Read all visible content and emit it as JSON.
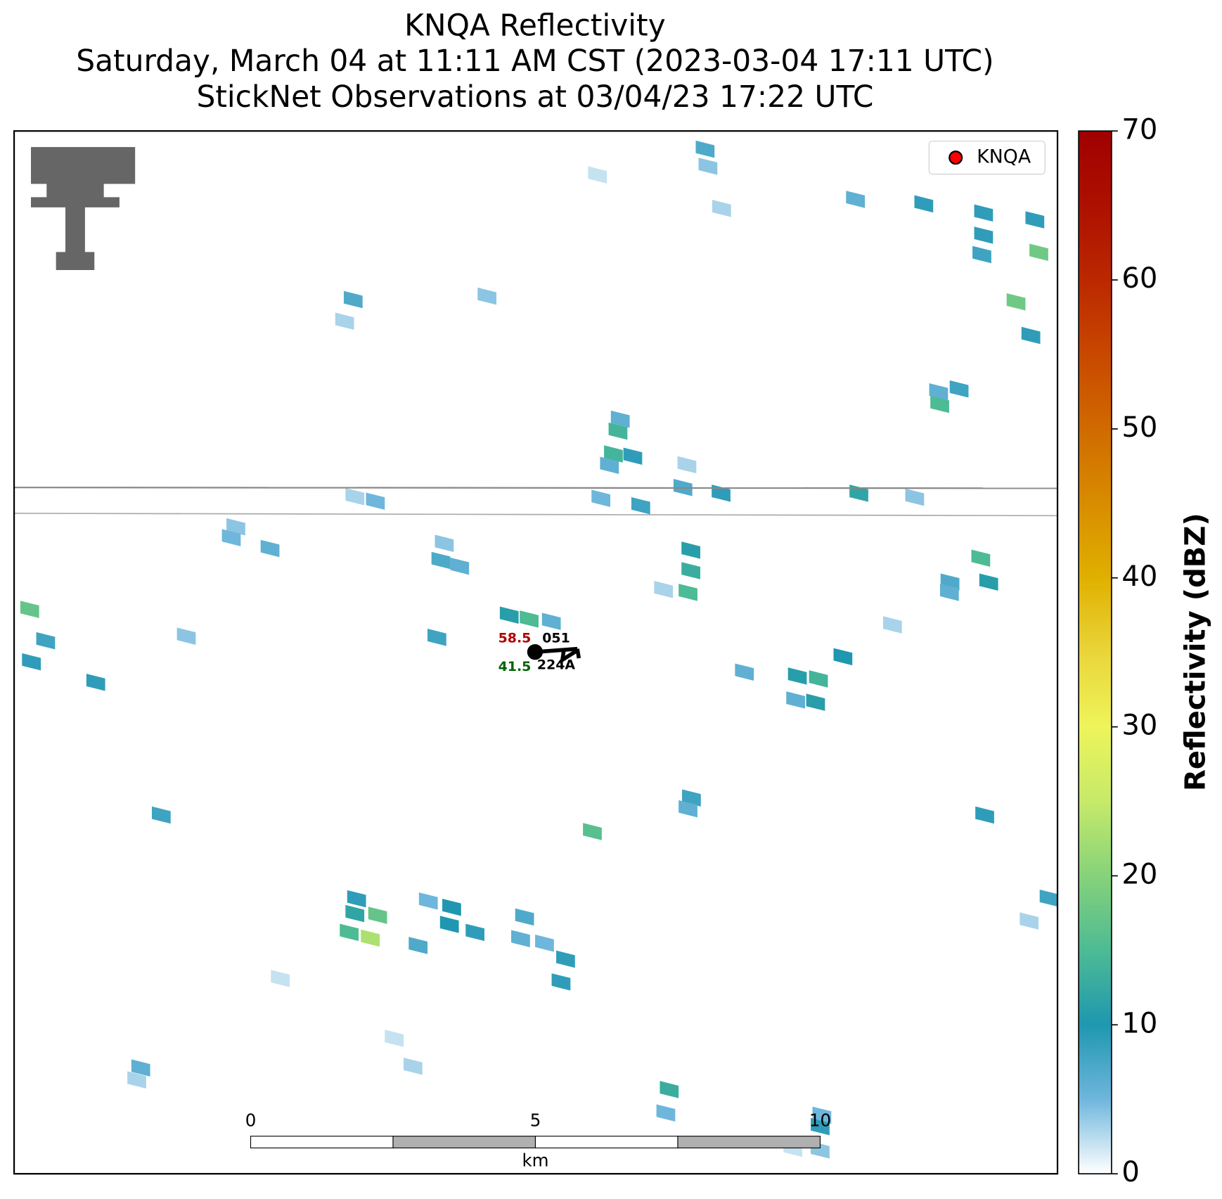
{
  "title": {
    "line1": "KNQA Reflectivity",
    "line2": "Saturday, March 04 at 11:11 AM CST (2023-03-04 17:11 UTC)",
    "line3": "StickNet Observations at 03/04/23 17:22 UTC"
  },
  "legend": {
    "label": "KNQA",
    "color": "#ff0000"
  },
  "station": {
    "temperature": 58.5,
    "dewpoint": 41.5,
    "pressure": "051",
    "id": "224A"
  },
  "colorbar": {
    "label": "Reflectivity (dBZ)",
    "lim": [
      0,
      70
    ],
    "ticks": [
      0,
      10,
      20,
      30,
      40,
      50,
      60,
      70
    ],
    "colormap": [
      "#ffffff",
      "#6fb6dc",
      "#1f97b0",
      "#4dbb94",
      "#86d27a",
      "#c6ea6a",
      "#eef45a",
      "#e9d53a",
      "#e0b000",
      "#d88c00",
      "#d06a00",
      "#c84800",
      "#bb2800",
      "#ad1000",
      "#a00000"
    ]
  },
  "scale_bar": {
    "ticks": [
      0,
      5,
      10
    ],
    "unit": "km"
  },
  "radar_cells": {
    "x": [
      7.98,
      8.03,
      6.09,
      8.27,
      10.62,
      11.82,
      12.87,
      12.87,
      12.84,
      13.77,
      13.84,
      1.8,
      1.65,
      4.15,
      13.44,
      13.7,
      12.08,
      12.44,
      12.1,
      6.49,
      6.45,
      6.37,
      6.71,
      6.3,
      7.66,
      7.59,
      8.26,
      6.85,
      6.15,
      1.83,
      2.19,
      10.68,
      11.66,
      -0.26,
      -0.34,
      0.34,
      3.4,
      3.34,
      3.67,
      7.73,
      7.73,
      7.68,
      7.25,
      12.82,
      12.28,
      12.96,
      12.27,
      4.54,
      4.89,
      5.28,
      3.27,
      -3.88,
      -3.6,
      -3.85,
      -2.72,
      -1.13,
      10.4,
      9.6,
      9.97,
      8.67,
      9.57,
      9.92,
      11.27,
      -1.57,
      7.74,
      7.68,
      6.0,
      12.89,
      1.86,
      1.83,
      2.23,
      1.73,
      2.1,
      3.12,
      3.53,
      3.49,
      3.94,
      4.81,
      4.74,
      5.16,
      2.94,
      5.53,
      5.45,
      0.52,
      -1.93,
      -2.0,
      2.52,
      2.85,
      7.35,
      7.29,
      10.03,
      10.0,
      10.0,
      9.52,
      14.02,
      13.67
    ],
    "y": [
      0.32,
      0.62,
      0.77,
      1.36,
      1.2,
      1.28,
      1.44,
      1.83,
      2.17,
      1.56,
      2.13,
      2.96,
      3.34,
      2.9,
      3.0,
      3.59,
      4.58,
      4.53,
      4.8,
      5.06,
      5.27,
      5.67,
      5.71,
      5.87,
      5.86,
      6.26,
      6.36,
      6.58,
      6.45,
      6.42,
      6.5,
      6.36,
      6.43,
      6.95,
      7.14,
      7.33,
      7.24,
      7.54,
      7.64,
      7.36,
      7.72,
      8.1,
      8.05,
      7.5,
      7.92,
      7.92,
      8.1,
      8.5,
      8.57,
      8.61,
      8.89,
      8.4,
      8.95,
      9.32,
      9.68,
      8.87,
      9.23,
      9.57,
      9.62,
      9.5,
      9.99,
      10.03,
      8.67,
      12.01,
      11.71,
      11.9,
      12.3,
      12.01,
      13.48,
      13.74,
      13.77,
      14.07,
      14.17,
      13.52,
      13.63,
      13.93,
      14.07,
      13.8,
      14.18,
      14.26,
      14.3,
      14.54,
      14.94,
      14.88,
      16.45,
      16.66,
      15.93,
      16.42,
      16.83,
      17.24,
      17.28,
      17.48,
      17.89,
      17.86,
      13.47,
      13.87
    ],
    "dbz": [
      7,
      4,
      2,
      3,
      6,
      9,
      9,
      9,
      8,
      9,
      18,
      7,
      3,
      4,
      18,
      9,
      6,
      8,
      15,
      6,
      14,
      14,
      9,
      6,
      3,
      7,
      9,
      8,
      5,
      3,
      5,
      12,
      4,
      4,
      5,
      6,
      4,
      7,
      6,
      11,
      13,
      15,
      3,
      15,
      7,
      11,
      6,
      11,
      15,
      6,
      8,
      17,
      8,
      9,
      9,
      4,
      10,
      11,
      14,
      6,
      6,
      11,
      3,
      8,
      8,
      6,
      16,
      9,
      9,
      12,
      17,
      15,
      23,
      5,
      10,
      10,
      9,
      7,
      6,
      5,
      7,
      9,
      9,
      2,
      6,
      3,
      2,
      3,
      13,
      5,
      5,
      9,
      4,
      2,
      8,
      3
    ]
  }
}
